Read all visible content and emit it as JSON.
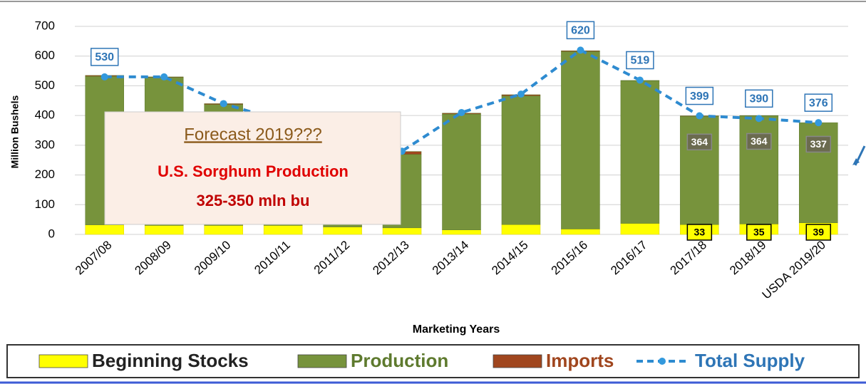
{
  "chart_data": {
    "type": "stacked_bar_line",
    "y_label": "Million Bushels",
    "x_label": "Marketing Years",
    "categories": [
      "2007/08",
      "2008/09",
      "2009/10",
      "2010/11",
      "2011/12",
      "2012/13",
      "2013/14",
      "2014/15",
      "2015/16",
      "2016/17",
      "2017/18",
      "2018/19",
      "USDA 2019/20"
    ],
    "ylim": [
      0,
      700
    ],
    "yticks": [
      0,
      100,
      200,
      300,
      400,
      500,
      600,
      700
    ],
    "grid": true,
    "series": [
      {
        "name": "Beginning Stocks",
        "color": "#ffff00",
        "values": [
          32,
          30,
          30,
          30,
          25,
          22,
          15,
          33,
          18,
          37,
          33,
          35,
          39
        ],
        "value_labels": [
          null,
          null,
          null,
          null,
          null,
          null,
          null,
          null,
          null,
          null,
          "33",
          "35",
          "39"
        ]
      },
      {
        "name": "Production",
        "color": "#77933c",
        "values": [
          500,
          498,
          407,
          345,
          235,
          247,
          390,
          433,
          597,
          480,
          364,
          364,
          337
        ],
        "value_labels": [
          null,
          null,
          null,
          null,
          null,
          null,
          null,
          null,
          null,
          null,
          "364",
          "364",
          "337"
        ]
      },
      {
        "name": "Imports",
        "color": "#a0461e",
        "values": [
          3,
          2,
          3,
          3,
          10,
          10,
          3,
          4,
          3,
          1,
          2,
          1,
          0
        ]
      },
      {
        "name": "Total Supply",
        "type": "line",
        "color": "#2e8bd0",
        "values": [
          530,
          530,
          440,
          380,
          270,
          280,
          410,
          472,
          620,
          519,
          399,
          390,
          376
        ],
        "value_labels": [
          "530",
          null,
          null,
          null,
          null,
          null,
          null,
          null,
          "620",
          "519",
          "399",
          "390",
          "376"
        ]
      }
    ],
    "annotation": {
      "title": "Forecast 2019???",
      "line1": "U.S. Sorghum Production",
      "line2": "325-350 mln bu"
    }
  }
}
